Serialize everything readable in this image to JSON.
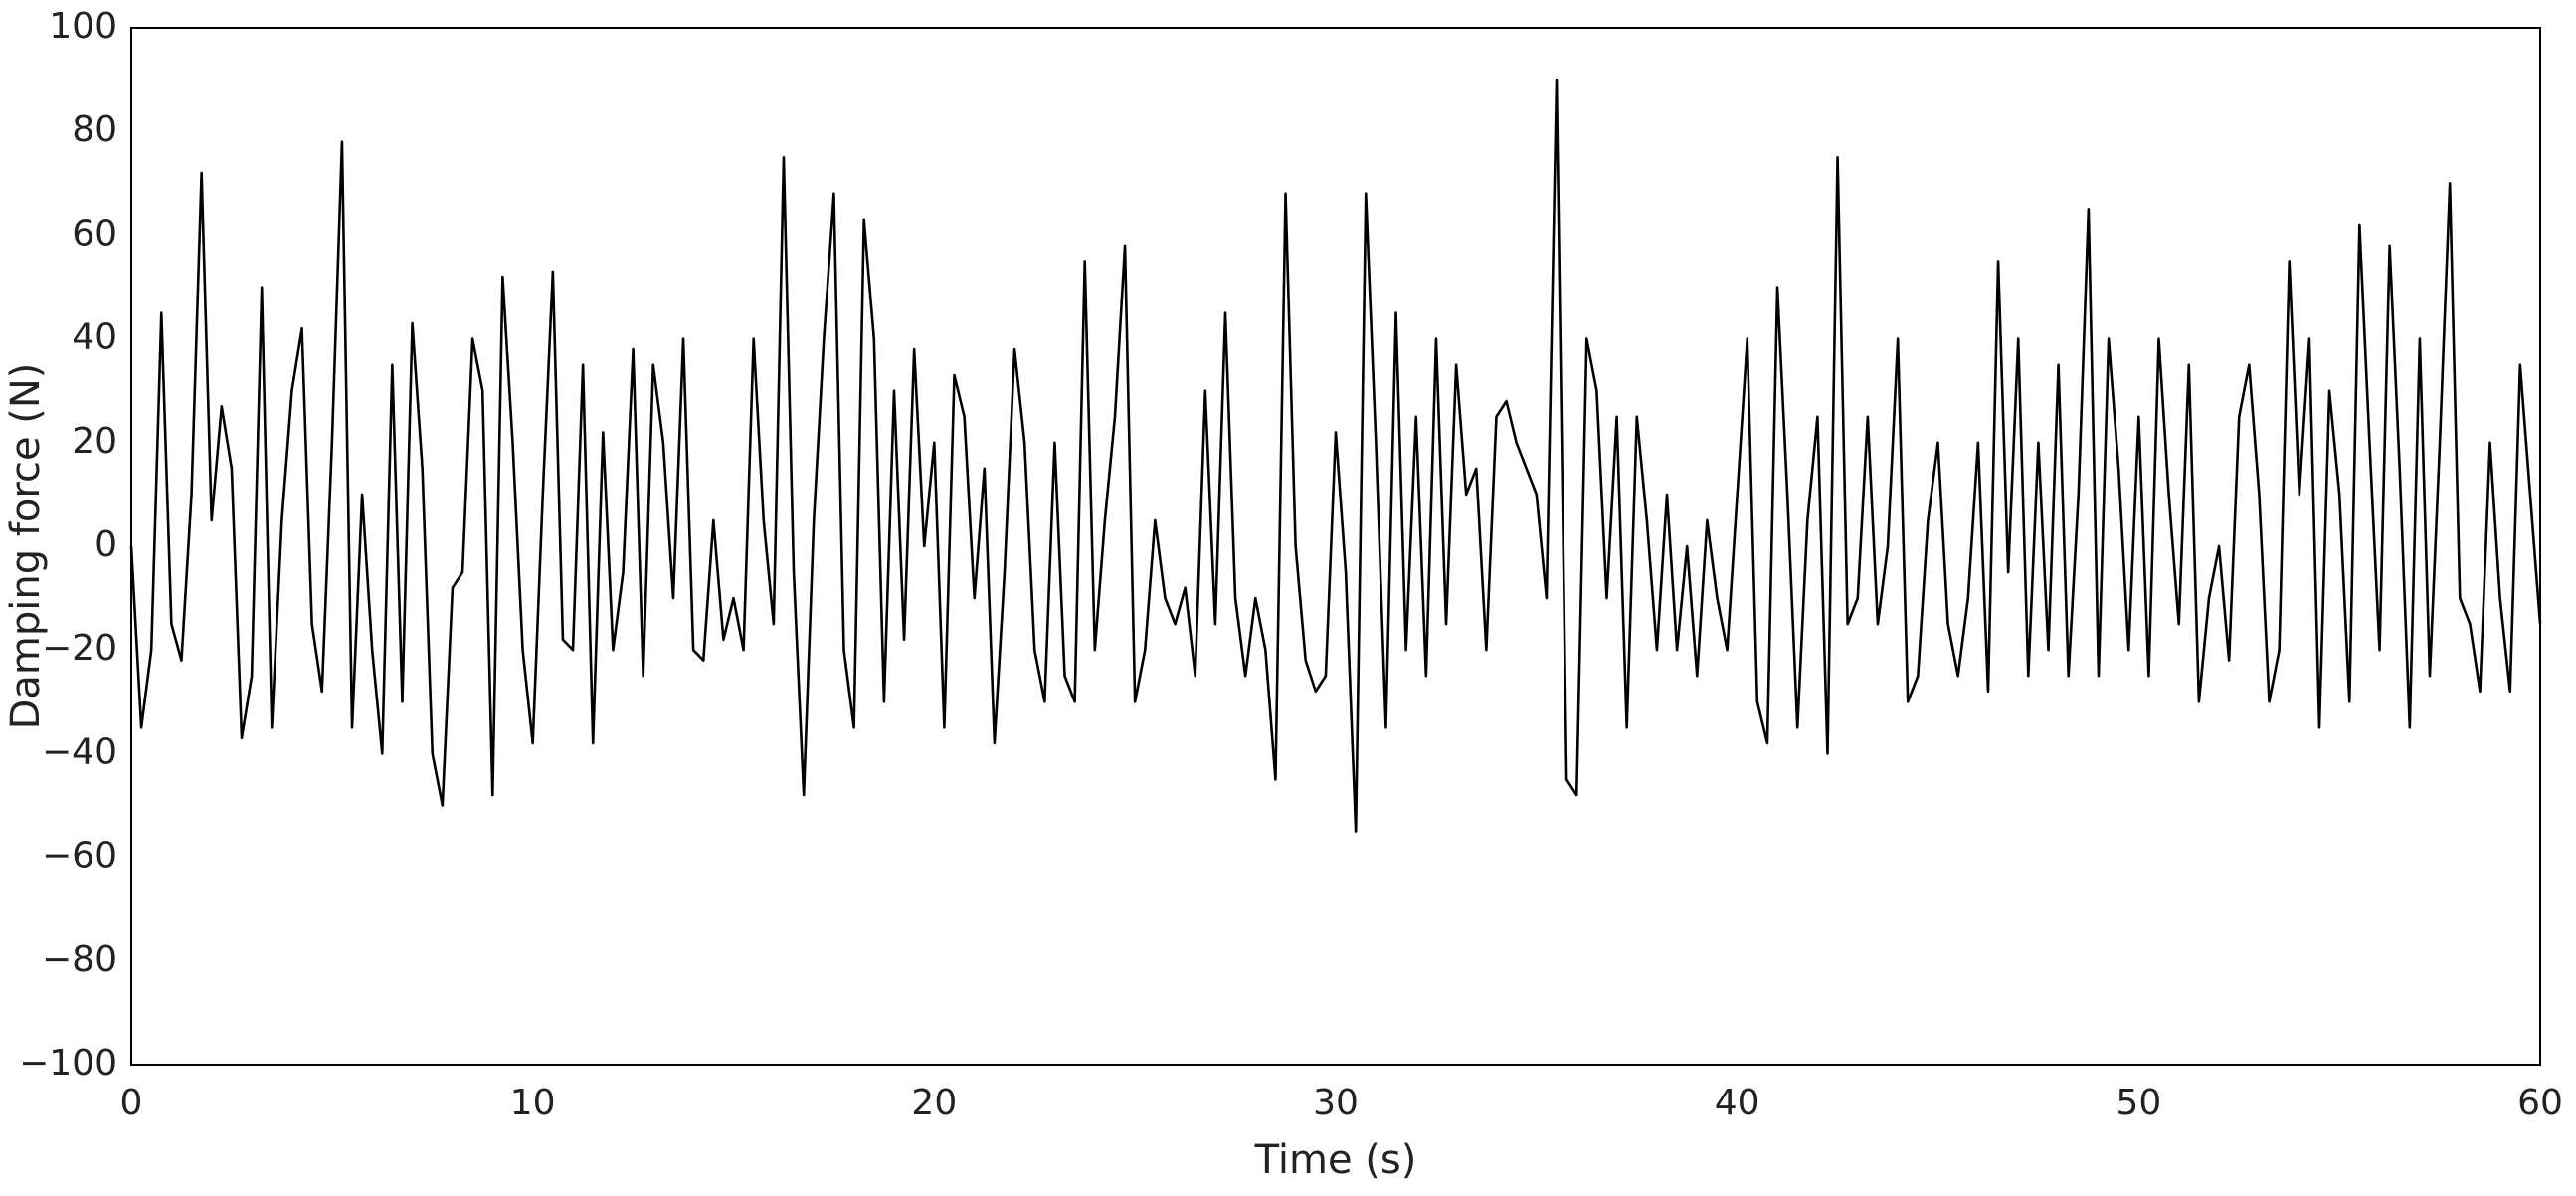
{
  "chart_data": {
    "type": "line",
    "xlabel": "Time (s)",
    "ylabel": "Damping force (N)",
    "color": "#000000",
    "xlim": [
      0,
      60
    ],
    "xticks": [
      0,
      10,
      20,
      30,
      40,
      50,
      60
    ],
    "ylim": [
      -100,
      100
    ],
    "yticks": [
      {
        "value": -100,
        "label": "−100"
      },
      {
        "value": -80,
        "label": "−80"
      },
      {
        "value": -60,
        "label": "−60"
      },
      {
        "value": -40,
        "label": "−40"
      },
      {
        "value": -20,
        "label": "−20"
      },
      0,
      20,
      40,
      60,
      80,
      100
    ],
    "x": [
      0,
      0.25,
      0.5,
      0.75,
      1,
      1.25,
      1.5,
      1.75,
      2,
      2.25,
      2.5,
      2.75,
      3,
      3.25,
      3.5,
      3.75,
      4,
      4.25,
      4.5,
      4.75,
      5,
      5.25,
      5.5,
      5.75,
      6,
      6.25,
      6.5,
      6.75,
      7,
      7.25,
      7.5,
      7.75,
      8,
      8.25,
      8.5,
      8.75,
      9,
      9.25,
      9.5,
      9.75,
      10,
      10.25,
      10.5,
      10.75,
      11,
      11.25,
      11.5,
      11.75,
      12,
      12.25,
      12.5,
      12.75,
      13,
      13.25,
      13.5,
      13.75,
      14,
      14.25,
      14.5,
      14.75,
      15,
      15.25,
      15.5,
      15.75,
      16,
      16.25,
      16.5,
      16.75,
      17,
      17.25,
      17.5,
      17.75,
      18,
      18.25,
      18.5,
      18.75,
      19,
      19.25,
      19.5,
      19.75,
      20,
      20.25,
      20.5,
      20.75,
      21,
      21.25,
      21.5,
      21.75,
      22,
      22.25,
      22.5,
      22.75,
      23,
      23.25,
      23.5,
      23.75,
      24,
      24.25,
      24.5,
      24.75,
      25,
      25.25,
      25.5,
      25.75,
      26,
      26.25,
      26.5,
      26.75,
      27,
      27.25,
      27.5,
      27.75,
      28,
      28.25,
      28.5,
      28.75,
      29,
      29.25,
      29.5,
      29.75,
      30,
      30.25,
      30.5,
      30.75,
      31,
      31.25,
      31.5,
      31.75,
      32,
      32.25,
      32.5,
      32.75,
      33,
      33.25,
      33.5,
      33.75,
      34,
      34.25,
      34.5,
      34.75,
      35,
      35.25,
      35.5,
      35.75,
      36,
      36.25,
      36.5,
      36.75,
      37,
      37.25,
      37.5,
      37.75,
      38,
      38.25,
      38.5,
      38.75,
      39,
      39.25,
      39.5,
      39.75,
      40,
      40.25,
      40.5,
      40.75,
      41,
      41.25,
      41.5,
      41.75,
      42,
      42.25,
      42.5,
      42.75,
      43,
      43.25,
      43.5,
      43.75,
      44,
      44.25,
      44.5,
      44.75,
      45,
      45.25,
      45.5,
      45.75,
      46,
      46.25,
      46.5,
      46.75,
      47,
      47.25,
      47.5,
      47.75,
      48,
      48.25,
      48.5,
      48.75,
      49,
      49.25,
      49.5,
      49.75,
      50,
      50.25,
      50.5,
      50.75,
      51,
      51.25,
      51.5,
      51.75,
      52,
      52.25,
      52.5,
      52.75,
      53,
      53.25,
      53.5,
      53.75,
      54,
      54.25,
      54.5,
      54.75,
      55,
      55.25,
      55.5,
      55.75,
      56,
      56.25,
      56.5,
      56.75,
      57,
      57.25,
      57.5,
      57.75,
      58,
      58.25,
      58.5,
      58.75,
      59,
      59.25,
      59.5,
      59.75,
      60
    ],
    "values": [
      0,
      -35,
      -20,
      45,
      -15,
      -22,
      10,
      72,
      5,
      27,
      15,
      -37,
      -25,
      50,
      -35,
      5,
      30,
      42,
      -15,
      -28,
      20,
      78,
      -35,
      10,
      -20,
      -40,
      35,
      -30,
      43,
      15,
      -40,
      -50,
      -8,
      -5,
      40,
      30,
      -48,
      52,
      20,
      -20,
      -38,
      10,
      53,
      -18,
      -20,
      35,
      -38,
      22,
      -20,
      -5,
      38,
      -25,
      35,
      20,
      -10,
      40,
      -20,
      -22,
      5,
      -18,
      -10,
      -20,
      40,
      5,
      -15,
      75,
      -5,
      -48,
      5,
      40,
      68,
      -20,
      -35,
      63,
      40,
      -30,
      30,
      -18,
      38,
      0,
      20,
      -35,
      33,
      25,
      -10,
      15,
      -38,
      -5,
      38,
      20,
      -20,
      -30,
      20,
      -25,
      -30,
      55,
      -20,
      5,
      25,
      58,
      -30,
      -20,
      5,
      -10,
      -15,
      -8,
      -25,
      30,
      -15,
      45,
      -10,
      -25,
      -10,
      -20,
      -45,
      68,
      0,
      -22,
      -28,
      -25,
      22,
      -5,
      -55,
      68,
      20,
      -35,
      45,
      -20,
      25,
      -25,
      40,
      -15,
      35,
      10,
      15,
      -20,
      25,
      28,
      20,
      15,
      10,
      -10,
      90,
      -45,
      -48,
      40,
      30,
      -10,
      25,
      -35,
      25,
      5,
      -20,
      10,
      -20,
      0,
      -25,
      5,
      -10,
      -20,
      10,
      40,
      -30,
      -38,
      50,
      10,
      -35,
      5,
      25,
      -40,
      75,
      -15,
      -10,
      25,
      -15,
      0,
      40,
      -30,
      -25,
      5,
      20,
      -15,
      -25,
      -10,
      20,
      -28,
      55,
      -5,
      40,
      -25,
      20,
      -20,
      35,
      -25,
      10,
      65,
      -25,
      40,
      15,
      -20,
      25,
      -25,
      40,
      10,
      -15,
      35,
      -30,
      -10,
      0,
      -22,
      25,
      35,
      10,
      -30,
      -20,
      55,
      10,
      40,
      -35,
      30,
      10,
      -30,
      62,
      20,
      -20,
      58,
      15,
      -35,
      40,
      -25,
      20,
      70,
      -10,
      -15,
      -28,
      20,
      -10,
      -28,
      35,
      10,
      -15
    ]
  }
}
